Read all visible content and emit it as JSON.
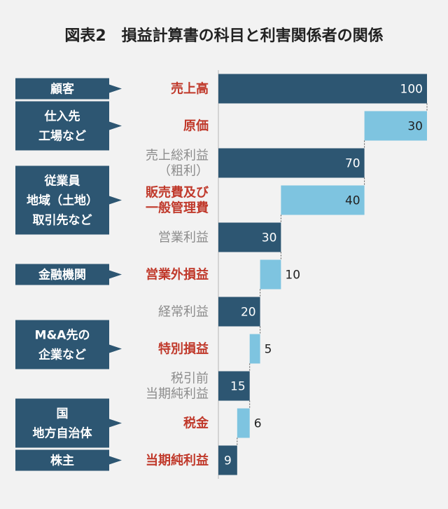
{
  "title": "図表2　損益計算書の科目と利害関係者の関係",
  "colors": {
    "dark_bar": "#2d5672",
    "light_bar": "#7ec4e0",
    "stakeholder_box": "#2d5672",
    "highlight_text": "#c0392b",
    "muted_text": "#8c8c8c",
    "background": "#f2f2f2"
  },
  "chart_data": {
    "type": "bar",
    "orientation": "horizontal-waterfall",
    "xlim": [
      0,
      100
    ],
    "items": [
      {
        "label_lines": [
          "売上高"
        ],
        "value": 100,
        "start": 0,
        "kind": "dark",
        "label_style": "highlight"
      },
      {
        "label_lines": [
          "原価"
        ],
        "value": 30,
        "start": 70,
        "kind": "light",
        "label_style": "highlight"
      },
      {
        "label_lines": [
          "売上総利益",
          "（粗利）"
        ],
        "value": 70,
        "start": 0,
        "kind": "dark",
        "label_style": "muted"
      },
      {
        "label_lines": [
          "販売費及び",
          "一般管理費"
        ],
        "value": 40,
        "start": 30,
        "kind": "light",
        "label_style": "highlight"
      },
      {
        "label_lines": [
          "営業利益"
        ],
        "value": 30,
        "start": 0,
        "kind": "dark",
        "label_style": "muted"
      },
      {
        "label_lines": [
          "営業外損益"
        ],
        "value": 10,
        "start": 20,
        "kind": "light",
        "label_style": "highlight"
      },
      {
        "label_lines": [
          "経常利益"
        ],
        "value": 20,
        "start": 0,
        "kind": "dark",
        "label_style": "muted"
      },
      {
        "label_lines": [
          "特別損益"
        ],
        "value": 5,
        "start": 15,
        "kind": "light",
        "label_style": "highlight"
      },
      {
        "label_lines": [
          "税引前",
          "当期純利益"
        ],
        "value": 15,
        "start": 0,
        "kind": "dark",
        "label_style": "muted"
      },
      {
        "label_lines": [
          "税金"
        ],
        "value": 6,
        "start": 9,
        "kind": "light",
        "label_style": "highlight"
      },
      {
        "label_lines": [
          "当期純利益"
        ],
        "value": 9,
        "start": 0,
        "kind": "dark",
        "label_style": "highlight"
      }
    ]
  },
  "stakeholders": [
    {
      "lines": [
        "顧客"
      ],
      "related_item": 0
    },
    {
      "lines": [
        "仕入先",
        "工場など"
      ],
      "related_item": 1
    },
    {
      "lines": [
        "従業員",
        "地域（土地）",
        "取引先など"
      ],
      "related_item": 3
    },
    {
      "lines": [
        "金融機関"
      ],
      "related_item": 5
    },
    {
      "lines": [
        "M&A先の",
        "企業など"
      ],
      "related_item": 7
    },
    {
      "lines": [
        "国",
        "地方自治体"
      ],
      "related_item": 9
    },
    {
      "lines": [
        "株主"
      ],
      "related_item": 10
    }
  ]
}
